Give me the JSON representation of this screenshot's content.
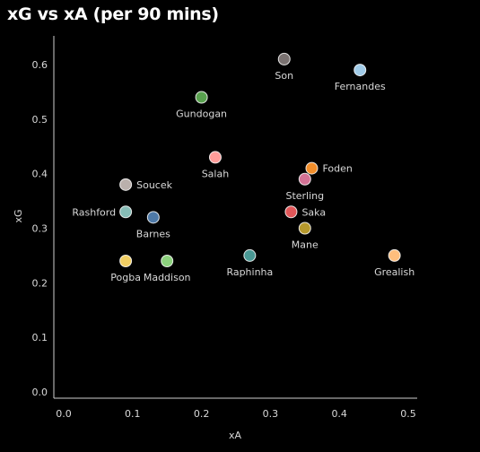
{
  "title": "xG vs xA (per 90 mins)",
  "chart_data": {
    "type": "scatter",
    "title": "xG vs xA (per 90 mins)",
    "xlabel": "xA",
    "ylabel": "xG",
    "xlim": [
      0.0,
      0.5
    ],
    "ylim": [
      0.0,
      0.6
    ],
    "x_ticks": [
      "0.0",
      "0.1",
      "0.2",
      "0.3",
      "0.4",
      "0.5"
    ],
    "y_ticks": [
      "0.0",
      "0.1",
      "0.2",
      "0.3",
      "0.4",
      "0.5",
      "0.6"
    ],
    "grid": false,
    "background": "#000000",
    "points": [
      {
        "label": "Son",
        "x": 0.32,
        "y": 0.61,
        "color": "#7a7271",
        "label_pos": "below"
      },
      {
        "label": "Fernandes",
        "x": 0.43,
        "y": 0.59,
        "color": "#a0cbe8",
        "label_pos": "below"
      },
      {
        "label": "Gundogan",
        "x": 0.2,
        "y": 0.54,
        "color": "#59a14f",
        "label_pos": "below"
      },
      {
        "label": "Salah",
        "x": 0.22,
        "y": 0.43,
        "color": "#ff9d9a",
        "label_pos": "below"
      },
      {
        "label": "Foden",
        "x": 0.36,
        "y": 0.41,
        "color": "#f28e2b",
        "label_pos": "right"
      },
      {
        "label": "Sterling",
        "x": 0.35,
        "y": 0.39,
        "color": "#d37295",
        "label_pos": "below"
      },
      {
        "label": "Soucek",
        "x": 0.09,
        "y": 0.38,
        "color": "#bab0ac",
        "label_pos": "right"
      },
      {
        "label": "Rashford",
        "x": 0.09,
        "y": 0.33,
        "color": "#86bcb6",
        "label_pos": "left"
      },
      {
        "label": "Saka",
        "x": 0.33,
        "y": 0.33,
        "color": "#e15759",
        "label_pos": "right"
      },
      {
        "label": "Barnes",
        "x": 0.13,
        "y": 0.32,
        "color": "#4e79a7",
        "label_pos": "below"
      },
      {
        "label": "Mane",
        "x": 0.35,
        "y": 0.3,
        "color": "#b6992d",
        "label_pos": "below"
      },
      {
        "label": "Raphinha",
        "x": 0.27,
        "y": 0.25,
        "color": "#499894",
        "label_pos": "below"
      },
      {
        "label": "Grealish",
        "x": 0.48,
        "y": 0.25,
        "color": "#ffbe7d",
        "label_pos": "below"
      },
      {
        "label": "Pogba",
        "x": 0.09,
        "y": 0.24,
        "color": "#f1ce63",
        "label_pos": "below"
      },
      {
        "label": "Maddison",
        "x": 0.15,
        "y": 0.24,
        "color": "#8cd17d",
        "label_pos": "below"
      }
    ]
  }
}
